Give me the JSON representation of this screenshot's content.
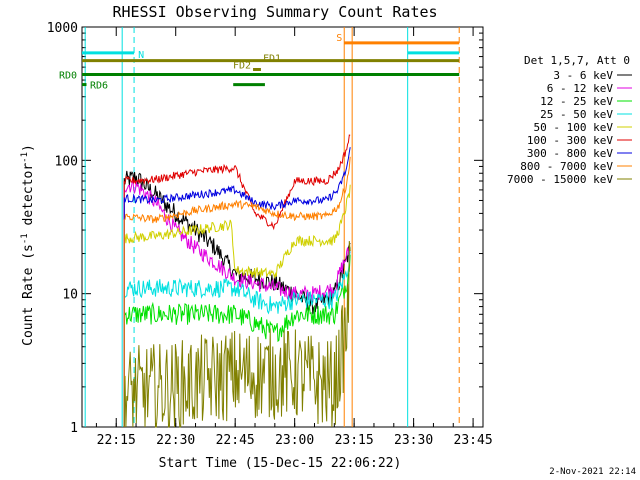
{
  "chart_data": {
    "type": "line",
    "title": "RHESSI Observing Summary Count Rates",
    "xlabel": "Start Time (15-Dec-15 22:06:22)",
    "ylabel": "Count Rate (s",
    "ylabel_sup1": "-1",
    "ylabel_mid": " detector",
    "ylabel_sup2": "-1",
    "ylabel_end": ")",
    "yscale": "log",
    "ylim": [
      1,
      1000
    ],
    "xlim": [
      "22:06:22",
      "23:47:30"
    ],
    "x_ticks": [
      "22:15",
      "22:30",
      "22:45",
      "23:00",
      "23:15",
      "23:30",
      "23:45"
    ],
    "y_ticks": [
      "1",
      "10",
      "100",
      "1000"
    ],
    "legend_title": "Det 1,5,7, Att 0",
    "legend_position": "right",
    "footer": "2-Nov-2021 22:14",
    "series": [
      {
        "name": "3 - 6 keV",
        "color": "#000000",
        "noise": 0.07,
        "x": [
          "22:17",
          "22:20",
          "22:25",
          "22:30",
          "22:35",
          "22:40",
          "22:45",
          "22:50",
          "22:55",
          "23:00",
          "23:05",
          "23:10",
          "23:12",
          "23:14"
        ],
        "values": [
          70,
          75,
          55,
          40,
          30,
          22,
          14,
          13,
          12,
          10,
          8,
          10,
          14,
          22
        ]
      },
      {
        "name": "6 - 12 keV",
        "color": "#e000e0",
        "noise": 0.06,
        "x": [
          "22:17",
          "22:20",
          "22:25",
          "22:30",
          "22:35",
          "22:40",
          "22:45",
          "22:50",
          "22:55",
          "23:00",
          "23:05",
          "23:10",
          "23:12",
          "23:14"
        ],
        "values": [
          65,
          65,
          48,
          30,
          22,
          17,
          13,
          12,
          11,
          10,
          10,
          11,
          16,
          22
        ]
      },
      {
        "name": "12 - 25 keV",
        "color": "#00e000",
        "noise": 0.08,
        "x": [
          "22:17",
          "22:25",
          "22:35",
          "22:45",
          "22:50",
          "22:55",
          "23:00",
          "23:10",
          "23:13",
          "23:14"
        ],
        "values": [
          7,
          7,
          7,
          7,
          6,
          5,
          7,
          7,
          12,
          18
        ]
      },
      {
        "name": "25 - 50 keV",
        "color": "#00e0e0",
        "noise": 0.07,
        "x": [
          "22:17",
          "22:25",
          "22:35",
          "22:45",
          "22:50",
          "22:55",
          "23:00",
          "23:10",
          "23:13",
          "23:14"
        ],
        "values": [
          11,
          11,
          11,
          11,
          9,
          8,
          9,
          9,
          14,
          20
        ]
      },
      {
        "name": "50 - 100 keV",
        "color": "#d0d000",
        "noise": 0.04,
        "x": [
          "22:17",
          "22:25",
          "22:35",
          "22:44",
          "22:45",
          "22:55",
          "23:00",
          "23:10",
          "23:12",
          "23:14"
        ],
        "values": [
          26,
          27,
          30,
          33,
          15,
          14,
          25,
          25,
          35,
          60
        ]
      },
      {
        "name": "100 - 300 keV",
        "color": "#e00000",
        "noise": 0.03,
        "x": [
          "22:17",
          "22:25",
          "22:35",
          "22:45",
          "22:50",
          "22:55",
          "23:00",
          "23:08",
          "23:11",
          "23:13",
          "23:14"
        ],
        "values": [
          70,
          72,
          82,
          88,
          40,
          32,
          70,
          70,
          85,
          120,
          155
        ]
      },
      {
        "name": "300 - 800 keV",
        "color": "#0000e0",
        "noise": 0.03,
        "x": [
          "22:17",
          "22:25",
          "22:35",
          "22:45",
          "22:50",
          "22:55",
          "23:00",
          "23:08",
          "23:11",
          "23:13",
          "23:14"
        ],
        "values": [
          52,
          50,
          55,
          60,
          48,
          45,
          50,
          50,
          60,
          85,
          120
        ]
      },
      {
        "name": "800 - 7000 keV",
        "color": "#ff8000",
        "noise": 0.03,
        "x": [
          "22:17",
          "22:25",
          "22:35",
          "22:45",
          "22:50",
          "22:55",
          "23:00",
          "23:08",
          "23:11",
          "23:13",
          "23:14"
        ],
        "values": [
          38,
          36,
          42,
          47,
          45,
          40,
          38,
          38,
          45,
          65,
          100
        ]
      },
      {
        "name": "7000 - 15000 keV",
        "color": "#808000",
        "noise": 0.35,
        "x": [
          "22:17",
          "22:30",
          "22:45",
          "23:00",
          "23:10",
          "23:13",
          "23:14"
        ],
        "values": [
          1.8,
          2.0,
          2.5,
          2.5,
          2.0,
          5,
          15
        ]
      }
    ],
    "vertical_lines": [
      {
        "x": "22:07:10",
        "color": "#00e0e0",
        "dashed": false
      },
      {
        "x": "22:16:30",
        "color": "#00e0e0",
        "dashed": false
      },
      {
        "x": "22:19:30",
        "color": "#00e0e0",
        "dashed": true
      },
      {
        "x": "23:12:30",
        "color": "#ff8000",
        "dashed": false
      },
      {
        "x": "23:14:30",
        "color": "#ff8000",
        "dashed": false
      },
      {
        "x": "23:28:30",
        "color": "#00e0e0",
        "dashed": false
      },
      {
        "x": "23:41:30",
        "color": "#ff8000",
        "dashed": true
      }
    ],
    "flag_bars": [
      {
        "label": "N",
        "color": "#00e0e0",
        "level": 640,
        "segments": [
          [
            "22:06:22",
            "22:19:30"
          ],
          [
            "23:28:30",
            "23:41:30"
          ]
        ]
      },
      {
        "label": "S",
        "color": "#ff8000",
        "level": 760,
        "segments": [
          [
            "23:12:30",
            "23:41:30"
          ]
        ]
      },
      {
        "label": "FD1",
        "color": "#808000",
        "level": 560,
        "segments": [
          [
            "22:06:22",
            "23:41:30"
          ]
        ]
      },
      {
        "label": "FD2",
        "color": "#808000",
        "level": 480,
        "segments": [
          [
            "22:49:30",
            "22:51:30"
          ]
        ]
      },
      {
        "label": "RD0",
        "color": "#008000",
        "level": 440,
        "segments": [
          [
            "22:06:22",
            "23:41:30"
          ]
        ]
      },
      {
        "label": "RD6",
        "color": "#008000",
        "level": 370,
        "segments": [
          [
            "22:06:22",
            "22:07:30"
          ],
          [
            "22:44:30",
            "22:52:30"
          ]
        ]
      }
    ]
  }
}
